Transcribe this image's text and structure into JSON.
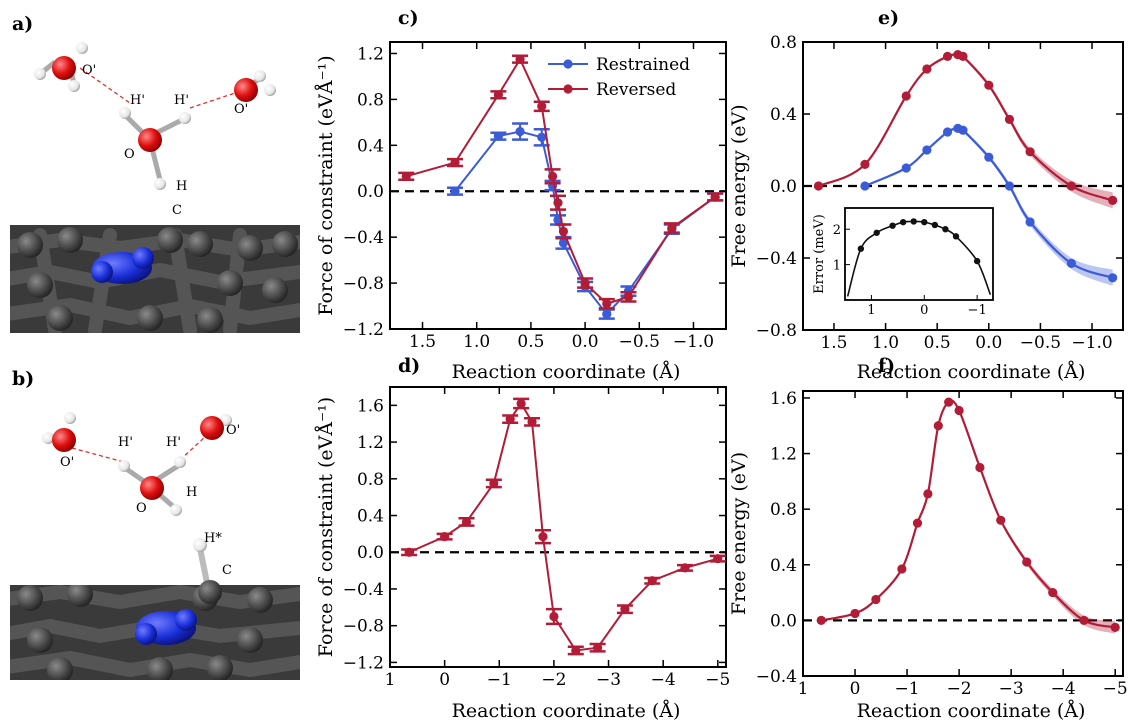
{
  "colors": {
    "restrained": "#3c5bd6",
    "reversed": "#b21c37",
    "inset": "#111111",
    "carbon": "#4a4a4a",
    "nitrogen": "#1a2fd8",
    "oxygen": "#e01010",
    "hydrogen": "#f2f2f2"
  },
  "molecule_panels": [
    {
      "label": "a)",
      "atoms": [
        "O'",
        "H'",
        "H'",
        "O'",
        "O",
        "H",
        "C"
      ]
    },
    {
      "label": "b)",
      "atoms": [
        "O'",
        "H'",
        "H'",
        "O'",
        "O",
        "H",
        "H*",
        "C"
      ]
    }
  ],
  "chart_data": [
    {
      "panel": "c)",
      "type": "line",
      "xlabel": "Reaction coordinate (Å)",
      "ylabel": "Force of constraint (eVÅ⁻¹)",
      "xlim": [
        1.8,
        -1.3
      ],
      "ylim": [
        -1.2,
        1.3
      ],
      "xticks": [
        1.5,
        1.0,
        0.5,
        0.0,
        -0.5,
        -1.0
      ],
      "xticklabels": [
        "1.5",
        "1.0",
        "0.5",
        "0.0",
        "−0.5",
        "−1.0"
      ],
      "yticks": [
        -1.2,
        -0.8,
        -0.4,
        0.0,
        0.4,
        0.8,
        1.2
      ],
      "yticklabels": [
        "−1.2",
        "−0.8",
        "−0.4",
        "0.0",
        "0.4",
        "0.8",
        "1.2"
      ],
      "hline": 0,
      "legend": "top-right",
      "series": [
        {
          "name": "Restrained",
          "color": "restrained",
          "x": [
            1.2,
            0.8,
            0.6,
            0.4,
            0.3,
            0.25,
            0.2,
            0.0,
            -0.2,
            -0.4,
            -0.8,
            -1.2
          ],
          "y": [
            0.0,
            0.48,
            0.52,
            0.47,
            0.05,
            -0.25,
            -0.45,
            -0.83,
            -1.07,
            -0.87,
            -0.33,
            -0.05
          ],
          "err": [
            0.03,
            0.03,
            0.07,
            0.07,
            0.04,
            0.04,
            0.05,
            0.04,
            0.04,
            0.04,
            0.04,
            0.03
          ]
        },
        {
          "name": "Reversed",
          "color": "reversed",
          "x": [
            1.65,
            1.2,
            0.8,
            0.6,
            0.4,
            0.3,
            0.25,
            0.2,
            0.0,
            -0.2,
            -0.4,
            -0.8,
            -1.2
          ],
          "y": [
            0.13,
            0.25,
            0.84,
            1.15,
            0.74,
            0.13,
            -0.1,
            -0.35,
            -0.8,
            -0.98,
            -0.92,
            -0.32,
            -0.05
          ],
          "err": [
            0.03,
            0.03,
            0.03,
            0.03,
            0.04,
            0.06,
            0.06,
            0.06,
            0.04,
            0.04,
            0.04,
            0.04,
            0.03
          ]
        }
      ]
    },
    {
      "panel": "d)",
      "type": "line",
      "xlabel": "Reaction coordinate (Å)",
      "ylabel": "Force of constraint (eVÅ⁻¹)",
      "xlim": [
        1.0,
        -5.15
      ],
      "ylim": [
        -1.25,
        1.8
      ],
      "xticks": [
        1,
        0,
        -1,
        -2,
        -3,
        -4,
        -5
      ],
      "xticklabels": [
        "1",
        "0",
        "−1",
        "−2",
        "−3",
        "−4",
        "−5"
      ],
      "yticks": [
        -1.2,
        -0.8,
        -0.4,
        0.0,
        0.4,
        0.8,
        1.2,
        1.6
      ],
      "yticklabels": [
        "−1.2",
        "−0.8",
        "−0.4",
        "0.0",
        "0.4",
        "0.8",
        "1.2",
        "1.6"
      ],
      "hline": 0,
      "series": [
        {
          "color": "reversed",
          "x": [
            0.65,
            0.0,
            -0.4,
            -0.9,
            -1.2,
            -1.4,
            -1.6,
            -1.8,
            -2.0,
            -2.4,
            -2.8,
            -3.3,
            -3.8,
            -4.4,
            -5.0
          ],
          "y": [
            0.0,
            0.17,
            0.33,
            0.75,
            1.45,
            1.62,
            1.42,
            0.17,
            -0.7,
            -1.07,
            -1.04,
            -0.62,
            -0.31,
            -0.17,
            -0.07
          ],
          "err": [
            0.03,
            0.03,
            0.04,
            0.04,
            0.04,
            0.05,
            0.04,
            0.07,
            0.08,
            0.04,
            0.04,
            0.04,
            0.03,
            0.03,
            0.03
          ]
        }
      ]
    },
    {
      "panel": "e)",
      "type": "line",
      "xlabel": "Reaction coordinate (Å)",
      "ylabel": "Free energy (eV)",
      "xlim": [
        1.8,
        -1.3
      ],
      "ylim": [
        -0.8,
        0.8
      ],
      "xticks": [
        1.5,
        1.0,
        0.5,
        0.0,
        -0.5,
        -1.0
      ],
      "xticklabels": [
        "1.5",
        "1.0",
        "0.5",
        "0.0",
        "−0.5",
        "−1.0"
      ],
      "yticks": [
        -0.8,
        -0.4,
        0.0,
        0.4,
        0.8
      ],
      "yticklabels": [
        "−0.8",
        "−0.4",
        "0.0",
        "0.4",
        "0.8"
      ],
      "hline": 0,
      "series": [
        {
          "color": "reversed",
          "x": [
            1.65,
            1.2,
            0.8,
            0.6,
            0.4,
            0.3,
            0.25,
            0.0,
            -0.2,
            -0.4,
            -0.8,
            -1.2
          ],
          "y": [
            0.0,
            0.12,
            0.5,
            0.65,
            0.72,
            0.73,
            0.72,
            0.56,
            0.37,
            0.19,
            0.0,
            -0.08
          ]
        },
        {
          "color": "restrained",
          "x": [
            1.2,
            0.8,
            0.6,
            0.4,
            0.3,
            0.25,
            0.0,
            -0.2,
            -0.4,
            -0.8,
            -1.2
          ],
          "y": [
            0.0,
            0.1,
            0.2,
            0.3,
            0.32,
            0.31,
            0.16,
            0.0,
            -0.2,
            -0.43,
            -0.51
          ]
        }
      ],
      "inset": {
        "ylabel": "Error (meV)",
        "xlim": [
          1.5,
          -1.3
        ],
        "ylim": [
          0,
          2.6
        ],
        "xticks": [
          1,
          0,
          -1
        ],
        "xticklabels": [
          "1",
          "0",
          "−1"
        ],
        "yticks": [
          1,
          2
        ],
        "yticklabels": [
          "1",
          "2"
        ],
        "x": [
          1.2,
          0.9,
          0.6,
          0.4,
          0.2,
          0.0,
          -0.2,
          -0.4,
          -0.6,
          -1.0
        ],
        "y": [
          1.45,
          1.9,
          2.1,
          2.2,
          2.22,
          2.2,
          2.12,
          2.0,
          1.8,
          1.1
        ]
      }
    },
    {
      "panel": "f)",
      "type": "line",
      "xlabel": "Reaction coordinate (Å)",
      "ylabel": "Free energy (eV)",
      "xlim": [
        1.0,
        -5.15
      ],
      "ylim": [
        -0.4,
        1.65
      ],
      "xticks": [
        1,
        0,
        -1,
        -2,
        -3,
        -4,
        -5
      ],
      "xticklabels": [
        "1",
        "0",
        "−1",
        "−2",
        "−3",
        "−4",
        "−5"
      ],
      "yticks": [
        -0.4,
        0.0,
        0.4,
        0.8,
        1.2,
        1.6
      ],
      "yticklabels": [
        "−0.4",
        "0.0",
        "0.4",
        "0.8",
        "1.2",
        "1.6"
      ],
      "hline": 0,
      "series": [
        {
          "color": "reversed",
          "x": [
            0.65,
            0.0,
            -0.4,
            -0.9,
            -1.2,
            -1.4,
            -1.6,
            -1.8,
            -2.0,
            -2.4,
            -2.8,
            -3.3,
            -3.8,
            -4.4,
            -5.0
          ],
          "y": [
            0.0,
            0.05,
            0.15,
            0.37,
            0.7,
            0.91,
            1.4,
            1.57,
            1.51,
            1.1,
            0.72,
            0.42,
            0.2,
            0.0,
            -0.05
          ]
        }
      ]
    }
  ]
}
